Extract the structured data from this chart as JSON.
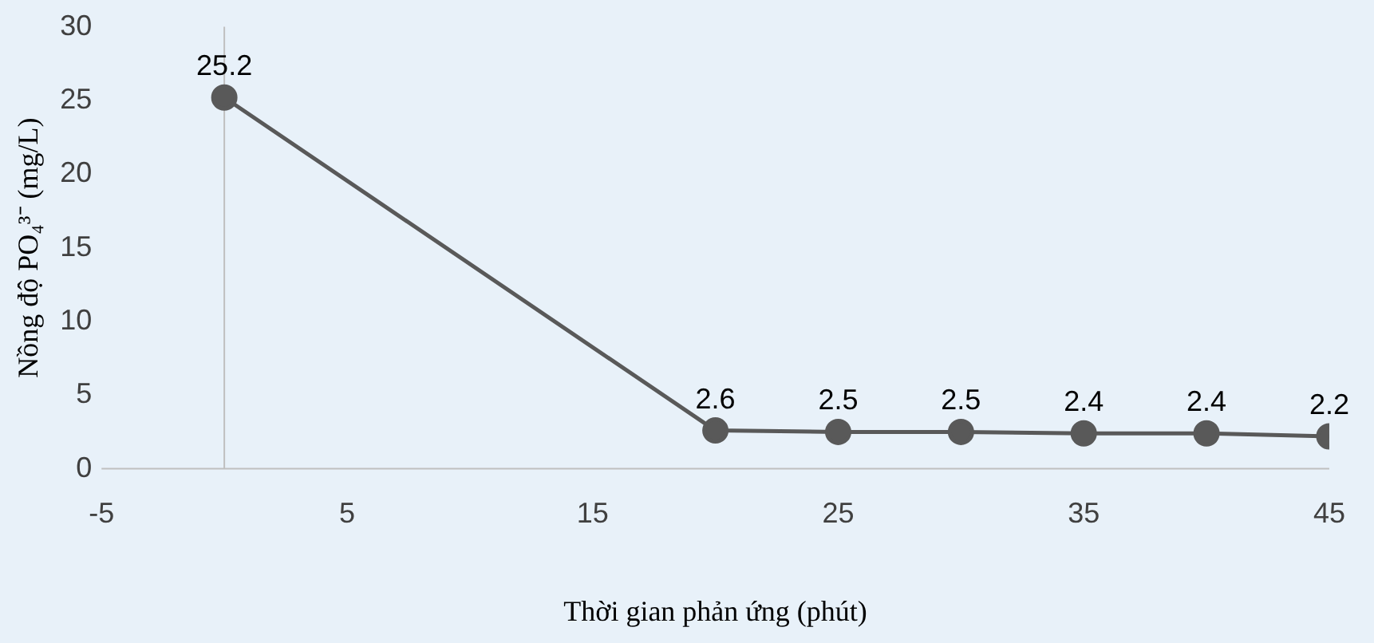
{
  "chart_data": {
    "type": "line",
    "xlabel": "Thời gian phản ứng (phút)",
    "ylabel": "Nồng độ PO₄³⁻ (mg/L)",
    "x": [
      0,
      20,
      25,
      30,
      35,
      40,
      45
    ],
    "series": [
      {
        "color": "#595959",
        "values": [
          25.2,
          2.6,
          2.5,
          2.5,
          2.4,
          2.4,
          2.2
        ]
      }
    ],
    "xlim": [
      -5,
      45
    ],
    "xticks": [
      -5,
      5,
      15,
      25,
      35,
      45
    ],
    "ylim": [
      0,
      30
    ],
    "yticks": [
      0,
      5,
      10,
      15,
      20,
      25,
      30
    ],
    "grid": false,
    "legend": false,
    "marker": "circle",
    "line_style": "solid",
    "data_labels": true
  }
}
